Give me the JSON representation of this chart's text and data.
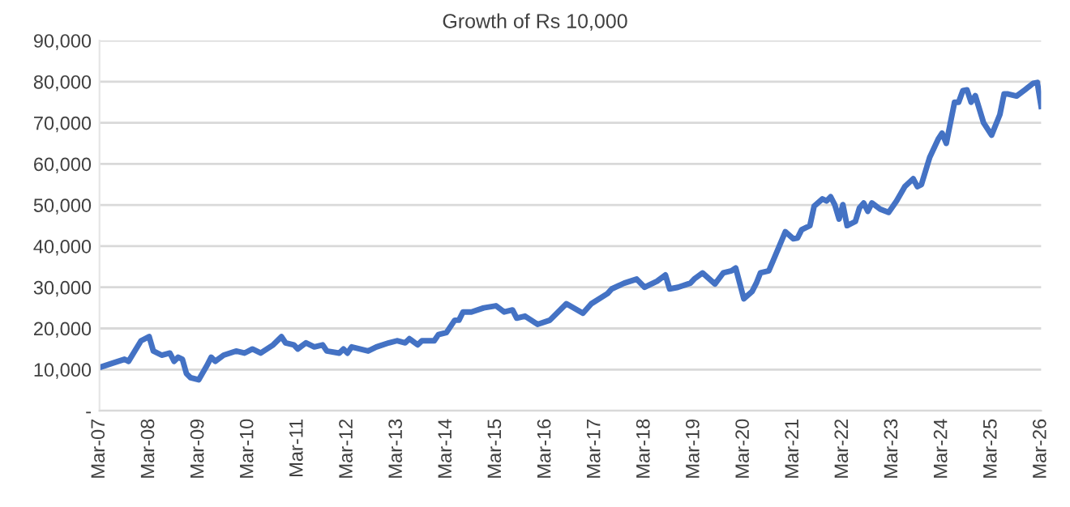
{
  "chart_data": {
    "type": "line",
    "title": "Growth of Rs 10,000",
    "x": [
      "2007-03",
      "2007-06",
      "2007-09",
      "2007-10",
      "2008-01",
      "2008-03",
      "2008-04",
      "2008-06",
      "2008-08",
      "2008-09",
      "2008-10",
      "2008-11",
      "2008-12",
      "2009-01",
      "2009-03",
      "2009-05",
      "2009-06",
      "2009-07",
      "2009-09",
      "2009-12",
      "2010-02",
      "2010-04",
      "2010-06",
      "2010-09",
      "2010-11",
      "2010-12",
      "2011-02",
      "2011-03",
      "2011-05",
      "2011-07",
      "2011-09",
      "2011-10",
      "2012-01",
      "2012-02",
      "2012-03",
      "2012-04",
      "2012-06",
      "2012-08",
      "2012-10",
      "2013-01",
      "2013-03",
      "2013-05",
      "2013-06",
      "2013-08",
      "2013-09",
      "2013-12",
      "2014-01",
      "2014-03",
      "2014-05",
      "2014-06",
      "2014-07",
      "2014-09",
      "2014-12",
      "2015-03",
      "2015-05",
      "2015-07",
      "2015-08",
      "2015-10",
      "2016-01",
      "2016-04",
      "2016-08",
      "2016-12",
      "2017-02",
      "2017-06",
      "2017-07",
      "2017-10",
      "2018-01",
      "2018-03",
      "2018-06",
      "2018-08",
      "2018-09",
      "2018-11",
      "2019-02",
      "2019-03",
      "2019-05",
      "2019-08",
      "2019-10",
      "2019-12",
      "2020-01",
      "2020-03",
      "2020-05",
      "2020-06",
      "2020-07",
      "2020-09",
      "2020-10",
      "2021-01",
      "2021-03",
      "2021-04",
      "2021-05",
      "2021-07",
      "2021-08",
      "2021-10",
      "2021-11",
      "2021-12",
      "2022-01",
      "2022-02",
      "2022-03",
      "2022-04",
      "2022-06",
      "2022-07",
      "2022-08",
      "2022-09",
      "2022-10",
      "2022-12",
      "2023-02",
      "2023-04",
      "2023-06",
      "2023-08",
      "2023-09",
      "2023-10",
      "2023-12",
      "2024-02",
      "2024-03",
      "2024-04",
      "2024-06",
      "2024-07",
      "2024-08",
      "2024-09",
      "2024-10",
      "2024-11",
      "2025-01",
      "2025-03",
      "2025-05",
      "2025-06",
      "2025-07",
      "2025-09",
      "2025-11",
      "2026-01",
      "2026-02",
      "2026-03"
    ],
    "series": [
      {
        "color": "#4472c4",
        "values": [
          10500,
          11500,
          12500,
          12000,
          17000,
          18000,
          14500,
          13500,
          14000,
          12000,
          13000,
          12500,
          9000,
          8000,
          7500,
          11000,
          13000,
          12000,
          13500,
          14500,
          14000,
          15000,
          14000,
          16000,
          18000,
          16500,
          16000,
          15000,
          16500,
          15500,
          16000,
          14500,
          14000,
          15000,
          14000,
          15500,
          15000,
          14500,
          15500,
          16500,
          17000,
          16500,
          17500,
          16000,
          17000,
          17000,
          18500,
          19000,
          22000,
          22000,
          24000,
          24000,
          25000,
          25500,
          24000,
          24500,
          22500,
          23000,
          21000,
          22000,
          26000,
          23700,
          26000,
          28500,
          29600,
          31000,
          32000,
          30000,
          31500,
          33000,
          29600,
          30000,
          31000,
          32000,
          33500,
          30800,
          33500,
          34000,
          34700,
          27200,
          29000,
          31000,
          33500,
          34000,
          36300,
          43500,
          41800,
          42000,
          44000,
          45000,
          49700,
          51500,
          51000,
          52000,
          50000,
          46600,
          50100,
          45000,
          46000,
          49300,
          50500,
          48500,
          50500,
          49000,
          48200,
          51000,
          54500,
          56400,
          54500,
          55000,
          61600,
          66000,
          67500,
          65000,
          75000,
          75000,
          77800,
          78000,
          75000,
          76600,
          70000,
          67000,
          72000,
          77000,
          77000,
          76500,
          78000,
          79600,
          79800,
          74000
        ]
      }
    ],
    "xlim": [
      "2007-03",
      "2026-03"
    ],
    "xticks": [
      {
        "value": "2007-03",
        "label": "Mar-07"
      },
      {
        "value": "2008-03",
        "label": "Mar-08"
      },
      {
        "value": "2009-03",
        "label": "Mar-09"
      },
      {
        "value": "2010-03",
        "label": "Mar-10"
      },
      {
        "value": "2011-03",
        "label": "Mar-11"
      },
      {
        "value": "2012-03",
        "label": "Mar-12"
      },
      {
        "value": "2013-03",
        "label": "Mar-13"
      },
      {
        "value": "2014-03",
        "label": "Mar-14"
      },
      {
        "value": "2015-03",
        "label": "Mar-15"
      },
      {
        "value": "2016-03",
        "label": "Mar-16"
      },
      {
        "value": "2017-03",
        "label": "Mar-17"
      },
      {
        "value": "2018-03",
        "label": "Mar-18"
      },
      {
        "value": "2019-03",
        "label": "Mar-19"
      },
      {
        "value": "2020-03",
        "label": "Mar-20"
      },
      {
        "value": "2021-03",
        "label": "Mar-21"
      },
      {
        "value": "2022-03",
        "label": "Mar-22"
      },
      {
        "value": "2023-03",
        "label": "Mar-23"
      },
      {
        "value": "2024-03",
        "label": "Mar-24"
      },
      {
        "value": "2025-03",
        "label": "Mar-25"
      },
      {
        "value": "2026-03",
        "label": "Mar-26"
      }
    ],
    "ylim": [
      0,
      90000
    ],
    "yticks": [
      {
        "value": 0,
        "label": "-"
      },
      {
        "value": 10000,
        "label": "10,000"
      },
      {
        "value": 20000,
        "label": "20,000"
      },
      {
        "value": 30000,
        "label": "30,000"
      },
      {
        "value": 40000,
        "label": "40,000"
      },
      {
        "value": 50000,
        "label": "50,000"
      },
      {
        "value": 60000,
        "label": "60,000"
      },
      {
        "value": 70000,
        "label": "70,000"
      },
      {
        "value": 80000,
        "label": "80,000"
      },
      {
        "value": 90000,
        "label": "90,000"
      }
    ],
    "grid": "y",
    "marker": "none",
    "line_style": "solid"
  }
}
